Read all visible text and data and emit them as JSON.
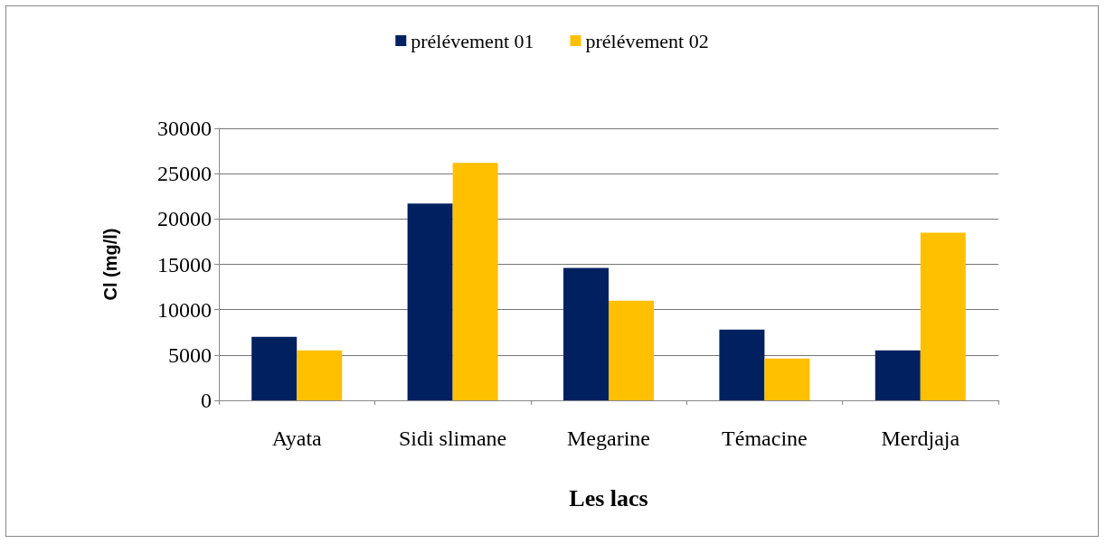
{
  "chart_data": {
    "type": "bar",
    "xlabel": "Les lacs",
    "ylabel": "Cl (mg/l)",
    "categories": [
      "Ayata",
      "Sidi slimane",
      "Megarine",
      "Témacine",
      "Merdjaja"
    ],
    "series": [
      {
        "name": "prélévement 01",
        "color": "#002060",
        "values": [
          7000,
          21700,
          14600,
          7800,
          5500
        ]
      },
      {
        "name": "prélévement 02",
        "color": "#ffc000",
        "values": [
          5500,
          26200,
          11000,
          4600,
          18500
        ]
      }
    ],
    "ylim": [
      0,
      30000
    ],
    "yticks": [
      0,
      5000,
      10000,
      15000,
      20000,
      25000,
      30000
    ],
    "grid": "y",
    "legend": "top"
  }
}
